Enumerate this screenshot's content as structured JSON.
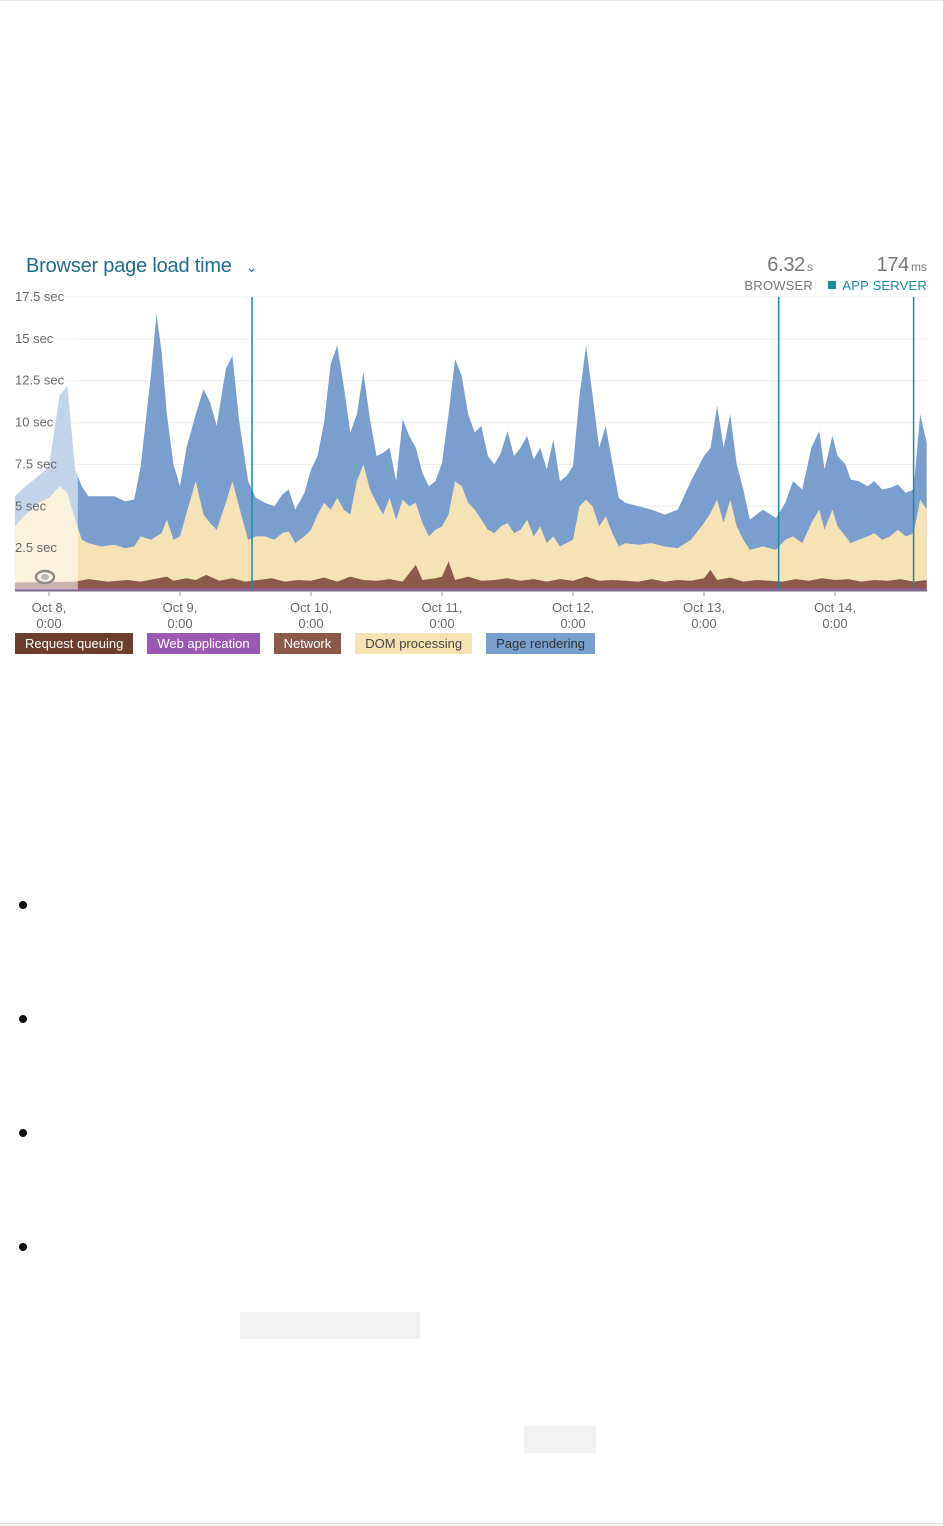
{
  "widget": {
    "title": "Browser page load time",
    "chevron_icon": "chevron-down-icon",
    "metrics": {
      "browser_value": "6.32",
      "browser_unit": "s",
      "browser_label": "BROWSER",
      "app_value": "174",
      "app_unit": "ms",
      "app_label": "APP SERVER"
    }
  },
  "legend": {
    "request_queuing": "Request queuing",
    "web_application": "Web application",
    "network": "Network",
    "dom_processing": "DOM processing",
    "page_rendering": "Page rendering"
  },
  "colors": {
    "page_rendering": "#7a9fcf",
    "dom_processing": "#f6e3b5",
    "network": "#8b5a4a",
    "request_queuing": "#6b3e2e",
    "web_application": "#9b59b6",
    "deploy_marker": "#1a8c9c",
    "title": "#1f6b8c"
  },
  "chart_data": {
    "type": "area",
    "stacked": true,
    "ylim": [
      0,
      17.5
    ],
    "y_ticks": [
      "17.5 sec",
      "15 sec",
      "12.5 sec",
      "10 sec",
      "7.5 sec",
      "5 sec",
      "2.5 sec"
    ],
    "y_tick_values": [
      17.5,
      15,
      12.5,
      10,
      7.5,
      5,
      2.5
    ],
    "x_ticks": [
      {
        "line1": "Oct 8,",
        "line2": "0:00"
      },
      {
        "line1": "Oct 9,",
        "line2": "0:00"
      },
      {
        "line1": "Oct 10,",
        "line2": "0:00"
      },
      {
        "line1": "Oct 11,",
        "line2": "0:00"
      },
      {
        "line1": "Oct 12,",
        "line2": "0:00"
      },
      {
        "line1": "Oct 13,",
        "line2": "0:00"
      },
      {
        "line1": "Oct 14,",
        "line2": "0:00"
      }
    ],
    "x_range_days": [
      -0.26,
      6.7
    ],
    "deploy_markers_days": [
      1.55,
      5.57,
      6.6
    ],
    "selection_days": [
      -0.26,
      0.22
    ],
    "grid": true,
    "series_order_bottom_to_top": [
      "Web application",
      "Network",
      "DOM processing",
      "Page rendering"
    ],
    "totals": [
      [
        -0.26,
        5.6
      ],
      [
        -0.18,
        6.2
      ],
      [
        -0.08,
        6.8
      ],
      [
        0.0,
        7.4
      ],
      [
        0.08,
        11.6
      ],
      [
        0.14,
        12.2
      ],
      [
        0.2,
        7.2
      ],
      [
        0.25,
        6.2
      ],
      [
        0.3,
        5.6
      ],
      [
        0.4,
        5.6
      ],
      [
        0.5,
        5.6
      ],
      [
        0.58,
        5.3
      ],
      [
        0.65,
        5.4
      ],
      [
        0.7,
        7.4
      ],
      [
        0.78,
        13.0
      ],
      [
        0.82,
        16.5
      ],
      [
        0.86,
        14.2
      ],
      [
        0.9,
        10.5
      ],
      [
        0.95,
        7.5
      ],
      [
        1.0,
        6.2
      ],
      [
        1.05,
        8.5
      ],
      [
        1.12,
        10.5
      ],
      [
        1.18,
        12.0
      ],
      [
        1.23,
        11.2
      ],
      [
        1.28,
        9.8
      ],
      [
        1.35,
        13.2
      ],
      [
        1.4,
        14.0
      ],
      [
        1.45,
        10.2
      ],
      [
        1.52,
        6.5
      ],
      [
        1.58,
        5.5
      ],
      [
        1.65,
        5.2
      ],
      [
        1.72,
        5.0
      ],
      [
        1.78,
        5.7
      ],
      [
        1.83,
        6.0
      ],
      [
        1.88,
        4.8
      ],
      [
        1.95,
        5.8
      ],
      [
        2.0,
        7.2
      ],
      [
        2.05,
        8.0
      ],
      [
        2.1,
        10.0
      ],
      [
        2.15,
        13.5
      ],
      [
        2.2,
        14.6
      ],
      [
        2.25,
        12.2
      ],
      [
        2.3,
        9.4
      ],
      [
        2.35,
        10.5
      ],
      [
        2.4,
        13.0
      ],
      [
        2.45,
        10.2
      ],
      [
        2.5,
        8.0
      ],
      [
        2.55,
        8.2
      ],
      [
        2.6,
        8.5
      ],
      [
        2.65,
        6.5
      ],
      [
        2.7,
        10.2
      ],
      [
        2.75,
        9.2
      ],
      [
        2.8,
        8.5
      ],
      [
        2.85,
        7.0
      ],
      [
        2.9,
        6.2
      ],
      [
        2.95,
        6.5
      ],
      [
        3.0,
        7.6
      ],
      [
        3.05,
        10.5
      ],
      [
        3.1,
        13.8
      ],
      [
        3.15,
        12.8
      ],
      [
        3.2,
        10.5
      ],
      [
        3.25,
        9.4
      ],
      [
        3.3,
        9.8
      ],
      [
        3.35,
        8.0
      ],
      [
        3.4,
        7.5
      ],
      [
        3.45,
        8.2
      ],
      [
        3.5,
        9.5
      ],
      [
        3.55,
        8.0
      ],
      [
        3.6,
        8.5
      ],
      [
        3.65,
        9.2
      ],
      [
        3.7,
        7.8
      ],
      [
        3.75,
        8.5
      ],
      [
        3.8,
        7.2
      ],
      [
        3.85,
        9.0
      ],
      [
        3.9,
        6.5
      ],
      [
        3.95,
        6.8
      ],
      [
        4.0,
        7.4
      ],
      [
        4.05,
        11.6
      ],
      [
        4.1,
        14.6
      ],
      [
        4.15,
        11.6
      ],
      [
        4.2,
        8.5
      ],
      [
        4.25,
        9.8
      ],
      [
        4.3,
        7.6
      ],
      [
        4.35,
        5.5
      ],
      [
        4.4,
        5.2
      ],
      [
        4.5,
        5.0
      ],
      [
        4.6,
        4.8
      ],
      [
        4.7,
        4.5
      ],
      [
        4.8,
        4.8
      ],
      [
        4.9,
        6.5
      ],
      [
        5.0,
        8.0
      ],
      [
        5.05,
        8.5
      ],
      [
        5.1,
        11.0
      ],
      [
        5.15,
        8.5
      ],
      [
        5.2,
        10.5
      ],
      [
        5.25,
        7.5
      ],
      [
        5.3,
        6.0
      ],
      [
        5.35,
        4.2
      ],
      [
        5.45,
        4.8
      ],
      [
        5.55,
        4.3
      ],
      [
        5.62,
        5.2
      ],
      [
        5.68,
        6.5
      ],
      [
        5.75,
        6.0
      ],
      [
        5.82,
        8.5
      ],
      [
        5.88,
        9.5
      ],
      [
        5.92,
        7.2
      ],
      [
        5.98,
        9.2
      ],
      [
        6.02,
        8.0
      ],
      [
        6.08,
        7.5
      ],
      [
        6.12,
        6.6
      ],
      [
        6.18,
        6.5
      ],
      [
        6.25,
        6.2
      ],
      [
        6.3,
        6.5
      ],
      [
        6.36,
        6.0
      ],
      [
        6.42,
        6.1
      ],
      [
        6.48,
        6.3
      ],
      [
        6.54,
        5.8
      ],
      [
        6.6,
        6.0
      ],
      [
        6.65,
        10.5
      ],
      [
        6.7,
        8.8
      ]
    ],
    "dom_processing_top": [
      [
        -0.26,
        3.8
      ],
      [
        -0.18,
        4.5
      ],
      [
        -0.08,
        5.2
      ],
      [
        0.0,
        5.5
      ],
      [
        0.08,
        6.2
      ],
      [
        0.14,
        5.8
      ],
      [
        0.2,
        4.2
      ],
      [
        0.25,
        3.0
      ],
      [
        0.3,
        2.8
      ],
      [
        0.4,
        2.6
      ],
      [
        0.5,
        2.7
      ],
      [
        0.58,
        2.5
      ],
      [
        0.65,
        2.6
      ],
      [
        0.7,
        3.2
      ],
      [
        0.78,
        3.0
      ],
      [
        0.82,
        3.2
      ],
      [
        0.86,
        3.4
      ],
      [
        0.9,
        4.2
      ],
      [
        0.95,
        3.0
      ],
      [
        1.0,
        3.2
      ],
      [
        1.05,
        4.6
      ],
      [
        1.12,
        6.5
      ],
      [
        1.18,
        4.5
      ],
      [
        1.23,
        4.0
      ],
      [
        1.28,
        3.6
      ],
      [
        1.35,
        5.2
      ],
      [
        1.4,
        6.5
      ],
      [
        1.45,
        5.0
      ],
      [
        1.52,
        3.0
      ],
      [
        1.58,
        3.2
      ],
      [
        1.65,
        3.2
      ],
      [
        1.72,
        3.0
      ],
      [
        1.78,
        3.4
      ],
      [
        1.83,
        3.5
      ],
      [
        1.88,
        2.8
      ],
      [
        1.95,
        3.2
      ],
      [
        2.0,
        3.6
      ],
      [
        2.05,
        4.5
      ],
      [
        2.1,
        5.2
      ],
      [
        2.15,
        4.8
      ],
      [
        2.2,
        5.5
      ],
      [
        2.25,
        4.8
      ],
      [
        2.3,
        4.5
      ],
      [
        2.35,
        6.5
      ],
      [
        2.4,
        7.5
      ],
      [
        2.45,
        6.0
      ],
      [
        2.5,
        5.2
      ],
      [
        2.55,
        4.5
      ],
      [
        2.6,
        5.5
      ],
      [
        2.65,
        4.2
      ],
      [
        2.7,
        5.4
      ],
      [
        2.75,
        5.0
      ],
      [
        2.8,
        5.2
      ],
      [
        2.85,
        4.0
      ],
      [
        2.9,
        3.2
      ],
      [
        2.95,
        3.6
      ],
      [
        3.0,
        3.8
      ],
      [
        3.05,
        4.5
      ],
      [
        3.1,
        6.5
      ],
      [
        3.15,
        6.2
      ],
      [
        3.2,
        5.2
      ],
      [
        3.25,
        4.8
      ],
      [
        3.3,
        4.2
      ],
      [
        3.35,
        3.6
      ],
      [
        3.4,
        3.4
      ],
      [
        3.45,
        3.8
      ],
      [
        3.5,
        4.0
      ],
      [
        3.55,
        3.4
      ],
      [
        3.6,
        3.6
      ],
      [
        3.65,
        4.2
      ],
      [
        3.7,
        3.2
      ],
      [
        3.75,
        3.8
      ],
      [
        3.8,
        2.8
      ],
      [
        3.85,
        3.2
      ],
      [
        3.9,
        2.6
      ],
      [
        3.95,
        2.8
      ],
      [
        4.0,
        3.0
      ],
      [
        4.05,
        5.0
      ],
      [
        4.1,
        5.4
      ],
      [
        4.15,
        5.0
      ],
      [
        4.2,
        3.8
      ],
      [
        4.25,
        4.4
      ],
      [
        4.3,
        3.4
      ],
      [
        4.35,
        2.6
      ],
      [
        4.4,
        2.8
      ],
      [
        4.5,
        2.7
      ],
      [
        4.6,
        2.8
      ],
      [
        4.7,
        2.6
      ],
      [
        4.8,
        2.5
      ],
      [
        4.9,
        3.0
      ],
      [
        5.0,
        4.0
      ],
      [
        5.05,
        4.6
      ],
      [
        5.1,
        5.4
      ],
      [
        5.15,
        4.0
      ],
      [
        5.2,
        5.4
      ],
      [
        5.25,
        3.8
      ],
      [
        5.3,
        3.0
      ],
      [
        5.35,
        2.4
      ],
      [
        5.45,
        2.6
      ],
      [
        5.55,
        2.4
      ],
      [
        5.62,
        3.0
      ],
      [
        5.68,
        3.2
      ],
      [
        5.75,
        2.8
      ],
      [
        5.82,
        4.0
      ],
      [
        5.88,
        4.8
      ],
      [
        5.92,
        3.6
      ],
      [
        5.98,
        4.8
      ],
      [
        6.02,
        3.8
      ],
      [
        6.08,
        3.2
      ],
      [
        6.12,
        2.8
      ],
      [
        6.18,
        3.0
      ],
      [
        6.25,
        3.2
      ],
      [
        6.3,
        3.4
      ],
      [
        6.36,
        3.0
      ],
      [
        6.42,
        3.2
      ],
      [
        6.48,
        3.6
      ],
      [
        6.54,
        3.2
      ],
      [
        6.6,
        3.4
      ],
      [
        6.65,
        5.4
      ],
      [
        6.7,
        4.8
      ]
    ],
    "network_top": [
      [
        -0.26,
        0.45
      ],
      [
        0.2,
        0.5
      ],
      [
        0.3,
        0.65
      ],
      [
        0.45,
        0.5
      ],
      [
        0.6,
        0.6
      ],
      [
        0.7,
        0.5
      ],
      [
        0.8,
        0.65
      ],
      [
        0.9,
        0.8
      ],
      [
        0.95,
        0.55
      ],
      [
        1.05,
        0.7
      ],
      [
        1.12,
        0.6
      ],
      [
        1.2,
        0.9
      ],
      [
        1.3,
        0.55
      ],
      [
        1.4,
        0.7
      ],
      [
        1.5,
        0.5
      ],
      [
        1.6,
        0.6
      ],
      [
        1.7,
        0.7
      ],
      [
        1.8,
        0.5
      ],
      [
        1.9,
        0.6
      ],
      [
        2.0,
        0.55
      ],
      [
        2.1,
        0.75
      ],
      [
        2.2,
        0.5
      ],
      [
        2.3,
        0.8
      ],
      [
        2.4,
        0.6
      ],
      [
        2.5,
        0.55
      ],
      [
        2.6,
        0.65
      ],
      [
        2.7,
        0.5
      ],
      [
        2.8,
        1.5
      ],
      [
        2.85,
        0.6
      ],
      [
        2.95,
        0.7
      ],
      [
        3.0,
        0.8
      ],
      [
        3.05,
        1.7
      ],
      [
        3.1,
        0.6
      ],
      [
        3.2,
        0.8
      ],
      [
        3.3,
        0.55
      ],
      [
        3.4,
        0.6
      ],
      [
        3.5,
        0.7
      ],
      [
        3.6,
        0.55
      ],
      [
        3.7,
        0.65
      ],
      [
        3.8,
        0.5
      ],
      [
        3.9,
        0.65
      ],
      [
        4.0,
        0.55
      ],
      [
        4.1,
        0.8
      ],
      [
        4.2,
        0.55
      ],
      [
        4.3,
        0.6
      ],
      [
        4.4,
        0.55
      ],
      [
        4.5,
        0.5
      ],
      [
        4.6,
        0.65
      ],
      [
        4.7,
        0.5
      ],
      [
        4.8,
        0.6
      ],
      [
        4.9,
        0.55
      ],
      [
        5.0,
        0.7
      ],
      [
        5.05,
        1.2
      ],
      [
        5.1,
        0.6
      ],
      [
        5.2,
        0.75
      ],
      [
        5.3,
        0.5
      ],
      [
        5.4,
        0.6
      ],
      [
        5.5,
        0.55
      ],
      [
        5.6,
        0.5
      ],
      [
        5.7,
        0.65
      ],
      [
        5.8,
        0.55
      ],
      [
        5.9,
        0.7
      ],
      [
        6.0,
        0.6
      ],
      [
        6.1,
        0.65
      ],
      [
        6.2,
        0.5
      ],
      [
        6.3,
        0.6
      ],
      [
        6.4,
        0.55
      ],
      [
        6.5,
        0.65
      ],
      [
        6.6,
        0.5
      ],
      [
        6.7,
        0.6
      ]
    ],
    "web_application_top": [
      [
        -0.26,
        0.1
      ],
      [
        6.7,
        0.1
      ]
    ]
  }
}
